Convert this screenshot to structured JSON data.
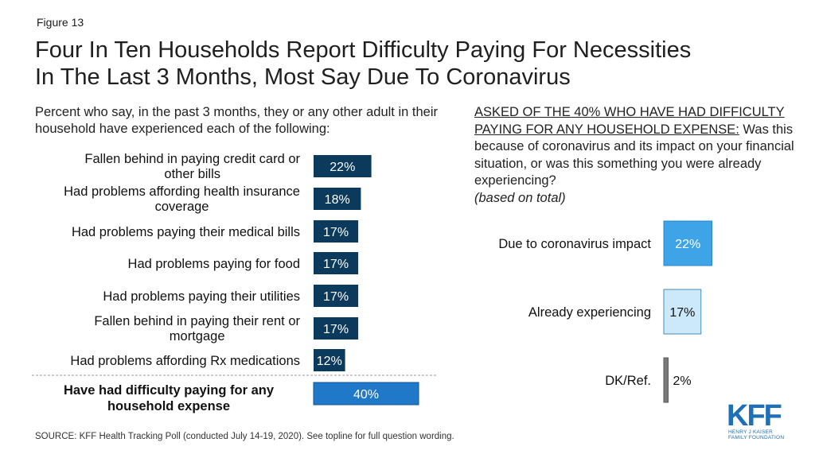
{
  "figure_label": "Figure 13",
  "title_lines": [
    "Four In Ten Households Report Difficulty Paying For Necessities",
    "In The Last 3 Months, Most Say Due To Coronavirus"
  ],
  "subtitle": "Percent who say, in the past 3 months, they or any other adult in their household have experienced each of the following:",
  "question": {
    "underlined": "ASKED OF THE 40% WHO HAVE HAD DIFFICULTY PAYING FOR ANY HOUSEHOLD EXPENSE:",
    "text": " Was this because of coronavirus and its impact on your financial situation, or was this something you were already experiencing?",
    "note": "(based on total)"
  },
  "source": "SOURCE: KFF Health Tracking Poll (conducted July 14-19, 2020). See topline for full question wording.",
  "logo": {
    "big": "KFF",
    "small": "HENRY J KAISER FAMILY FOUNDATION"
  },
  "colors": {
    "dark_bar": "#0b3a5c",
    "total_bar": "#1f78c8",
    "covid_bar": "#3fa3e8",
    "already_bar": "#cce8fb",
    "dk_bar": "#7a7a7a"
  },
  "chart_data": [
    {
      "type": "bar",
      "orientation": "horizontal",
      "categories": [
        [
          "Fallen behind in paying credit card or",
          "other bills"
        ],
        [
          "Had problems affording health insurance",
          "coverage"
        ],
        [
          "Had problems paying their medical bills"
        ],
        [
          "Had problems paying for food"
        ],
        [
          "Had problems paying their utilities"
        ],
        [
          "Fallen behind in paying their rent or",
          "mortgage"
        ],
        [
          "Had problems affording Rx medications"
        ]
      ],
      "values": [
        22,
        18,
        17,
        17,
        17,
        17,
        12
      ],
      "labels": [
        "22%",
        "18%",
        "17%",
        "17%",
        "17%",
        "17%",
        "12%"
      ],
      "total": {
        "category": [
          "Have had difficulty paying for any",
          "household expense"
        ],
        "value": 40,
        "label": "40%"
      },
      "xlim": [
        0,
        100
      ],
      "grid": false
    },
    {
      "type": "bar",
      "orientation": "horizontal",
      "categories": [
        "Due to coronavirus impact",
        "Already experiencing",
        "DK/Ref."
      ],
      "values": [
        22,
        17,
        2
      ],
      "labels": [
        "22%",
        "17%",
        "2%"
      ],
      "xlim": [
        0,
        100
      ],
      "grid": false
    }
  ]
}
